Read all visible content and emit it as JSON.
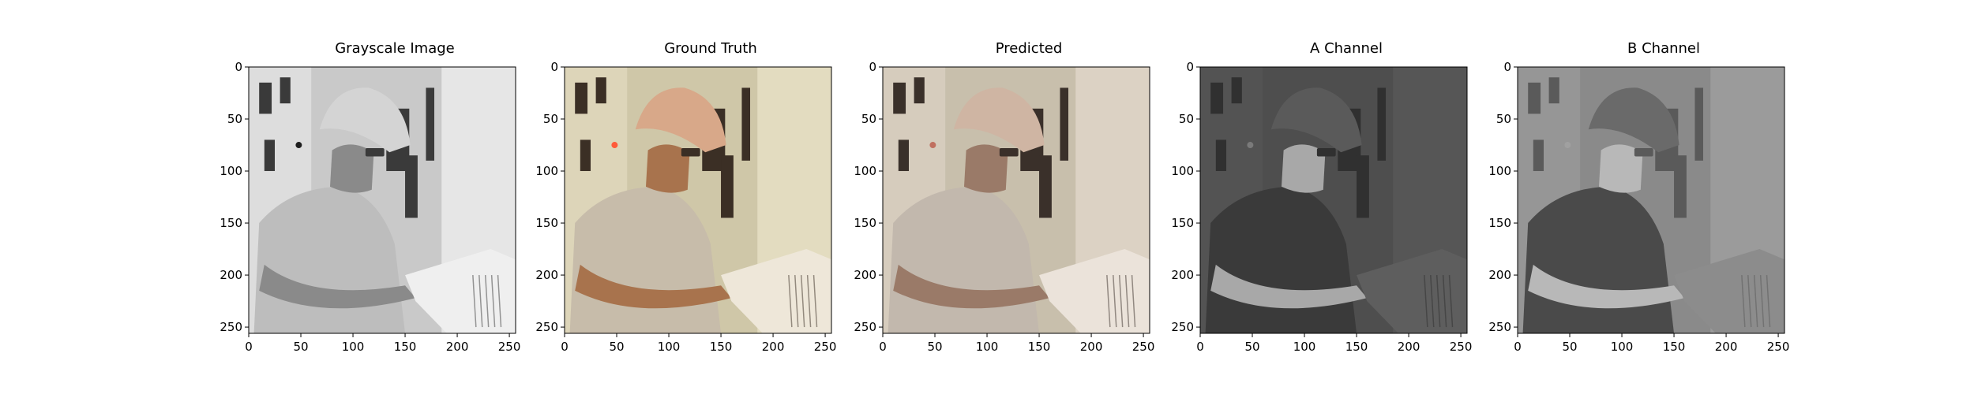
{
  "figure": {
    "panels": [
      {
        "title": "Grayscale Image",
        "variant": "gray"
      },
      {
        "title": "Ground Truth",
        "variant": "color"
      },
      {
        "title": "Predicted",
        "variant": "pred"
      },
      {
        "title": "A Channel",
        "variant": "a"
      },
      {
        "title": "B Channel",
        "variant": "b"
      }
    ],
    "x_ticks": [
      "0",
      "50",
      "100",
      "150",
      "200",
      "250"
    ],
    "y_ticks": [
      "0",
      "50",
      "100",
      "150",
      "200",
      "250"
    ],
    "image_extent": 256
  },
  "palette": {
    "gray": {
      "bg": "#c9c9c9",
      "wall": "#e6e6e6",
      "panelDark": "#3a3a3a",
      "hat": "#d4d4d4",
      "skin": "#8a8a8a",
      "shirt": "#bdbdbd",
      "paper": "#efefef",
      "accent": "#1e1e1e"
    },
    "color": {
      "bg": "#cfc7a8",
      "wall": "#e3dcc0",
      "panelDark": "#3b2f25",
      "hat": "#d8a889",
      "skin": "#a8734d",
      "shirt": "#c7bcaa",
      "paper": "#eee7d9",
      "accent": "#ff5a3a"
    },
    "pred": {
      "bg": "#c8bfac",
      "wall": "#dcd2c4",
      "panelDark": "#3a302a",
      "hat": "#cfb5a3",
      "skin": "#9a7a68",
      "shirt": "#c2b8ad",
      "paper": "#ebe3da",
      "accent": "#c07060"
    },
    "a": {
      "bg": "#4e4e4e",
      "wall": "#565656",
      "panelDark": "#303030",
      "hat": "#5a5a5a",
      "skin": "#a8a8a8",
      "shirt": "#3a3a3a",
      "paper": "#5e5e5e",
      "accent": "#7a7a7a"
    },
    "b": {
      "bg": "#8a8a8a",
      "wall": "#9b9b9b",
      "panelDark": "#5a5a5a",
      "hat": "#6a6a6a",
      "skin": "#b8b8b8",
      "shirt": "#4a4a4a",
      "paper": "#8c8c8c",
      "accent": "#a0a0a0"
    }
  }
}
